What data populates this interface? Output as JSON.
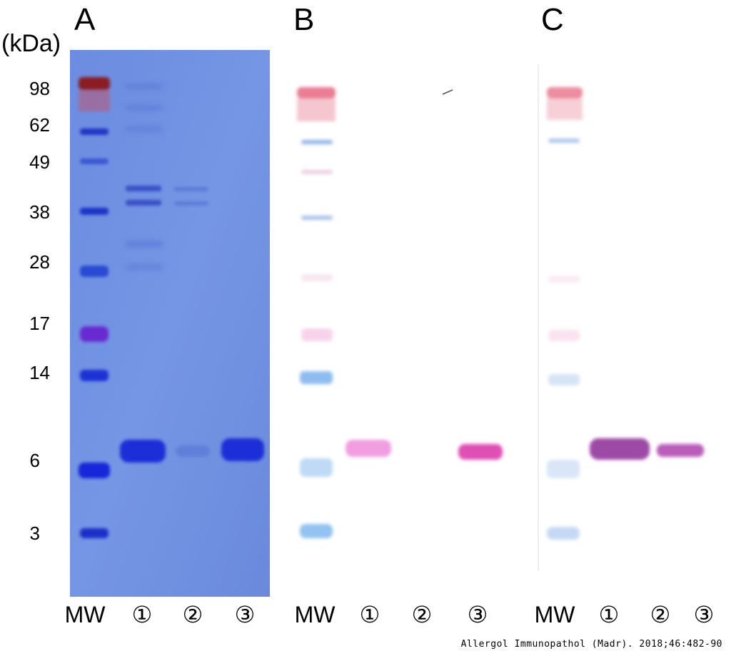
{
  "panels": {
    "a": {
      "letter": "A"
    },
    "b": {
      "letter": "B"
    },
    "c": {
      "letter": "C"
    }
  },
  "axis_unit": "(kDa)",
  "mw_markers": [
    "98",
    "62",
    "49",
    "38",
    "28",
    "17",
    "14",
    "6",
    "3"
  ],
  "lane_labels": {
    "a": [
      "MW",
      "①",
      "②",
      "③"
    ],
    "b": [
      "MW",
      "①",
      "②",
      "③"
    ],
    "c": [
      "MW",
      "①",
      "②",
      "③"
    ]
  },
  "citation": "Allergol Immunopathol (Madr). 2018;46:482-90",
  "colors": {
    "coomassie_bg": "#6f8ee0",
    "coomassie_band": "#1d2ed8",
    "ladder_red": "#d8384a",
    "ladder_blue": "#4f8fe6",
    "blot_pink": "#e873c8",
    "blot_purple": "#9d4aa6"
  }
}
